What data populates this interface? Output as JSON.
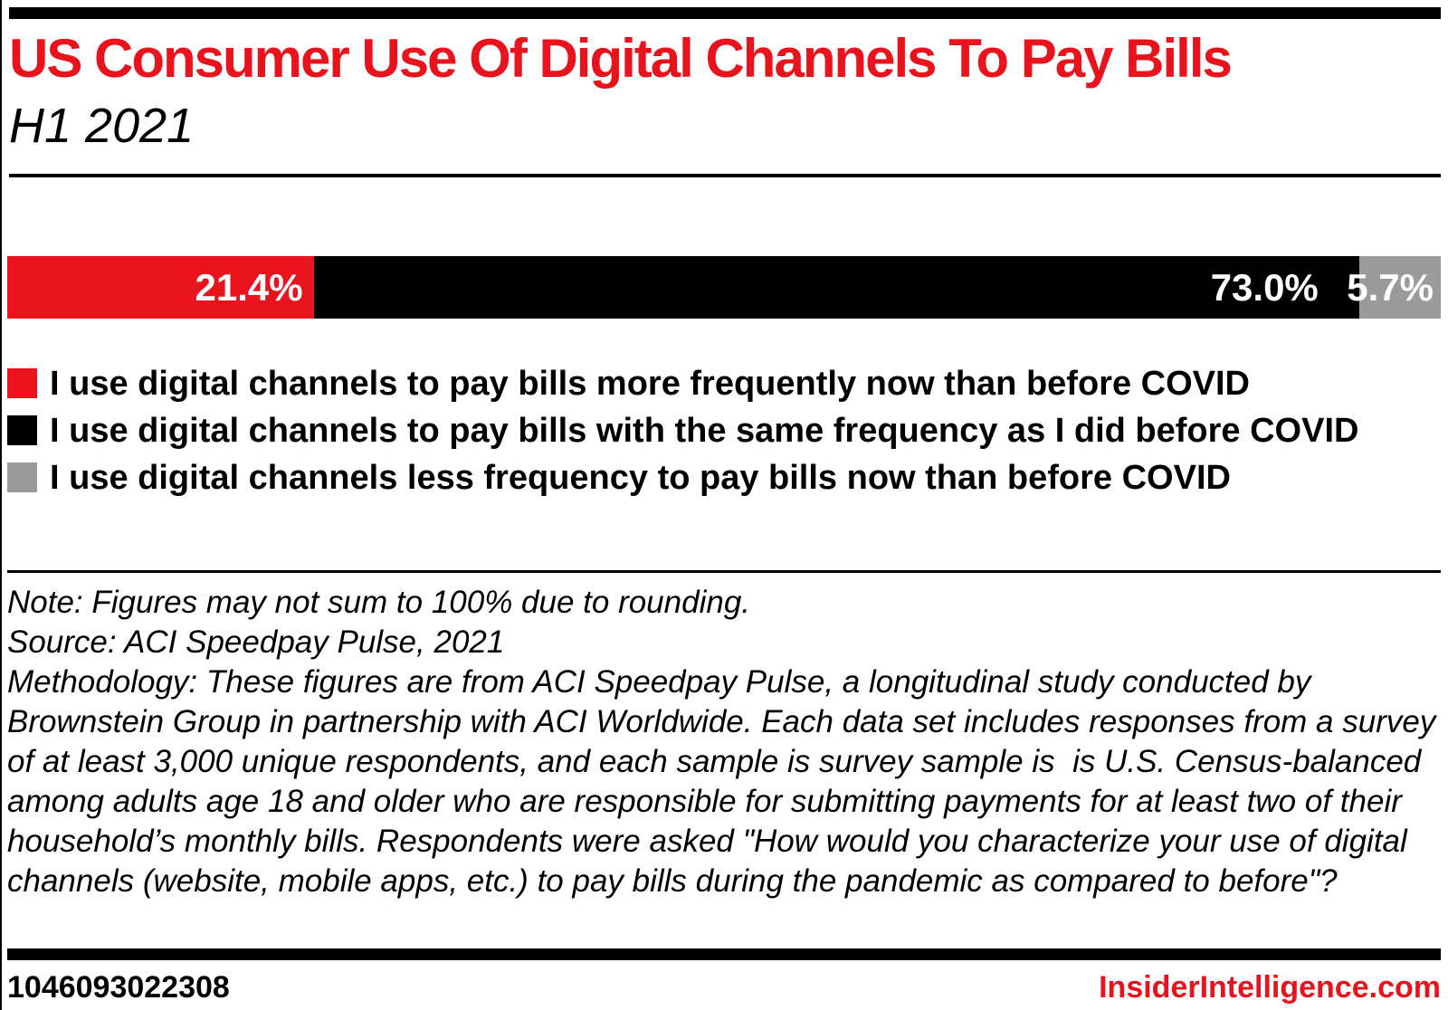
{
  "header": {
    "title": "US Consumer Use Of Digital Channels To Pay Bills",
    "subtitle": "H1 2021",
    "title_color": "#e8131c",
    "top_bar_color": "#000000"
  },
  "chart_data": {
    "type": "bar",
    "subtype": "horizontal-stacked",
    "title": "US Consumer Use Of Digital Channels To Pay Bills",
    "subtitle": "H1 2021",
    "unit": "%",
    "xlim": [
      0,
      100
    ],
    "grid": false,
    "legend_position": "below",
    "series": [
      {
        "name": "I use digital channels to pay bills more frequently now than before COVID",
        "value": 21.4,
        "label": "21.4%",
        "color": "#e8131c",
        "label_color": "#ffffff"
      },
      {
        "name": "I use digital channels to pay bills with the same frequency as I did before COVID",
        "value": 73.0,
        "label": "73.0%",
        "color": "#000000",
        "label_color": "#ffffff"
      },
      {
        "name": "I use digital channels less frequency to pay bills now than before COVID",
        "value": 5.7,
        "label": "5.7%",
        "color": "#9b9b9b",
        "label_color": "#ffffff"
      }
    ]
  },
  "legend": {
    "items": [
      {
        "label": "I use digital channels to pay bills more frequently now than before COVID",
        "color": "#e8131c"
      },
      {
        "label": "I use digital channels to pay bills with the same frequency as I did before COVID",
        "color": "#000000"
      },
      {
        "label": "I use digital channels less frequency to pay bills now than before COVID",
        "color": "#9b9b9b"
      }
    ]
  },
  "notes": {
    "note": "Note: Figures may not sum to 100% due to rounding.",
    "source": "Source: ACI Speedpay Pulse, 2021",
    "methodology": "Methodology: These figures are from ACI Speedpay Pulse, a longitudinal study conducted by Brownstein Group in partnership with ACI Worldwide. Each data set includes responses from a survey of at least 3,000 unique respondents, and each sample is survey sample is  is U.S. Census-balanced among adults age 18 and older who are responsible for submitting payments for at least two of their household’s monthly bills. Respondents were asked \"How would you characterize your use of digital channels (website, mobile apps, etc.) to pay bills during the pandemic as compared to before\"?"
  },
  "footer": {
    "chart_id": "1046093022308",
    "site": "InsiderIntelligence.com",
    "site_color": "#e8131c"
  }
}
